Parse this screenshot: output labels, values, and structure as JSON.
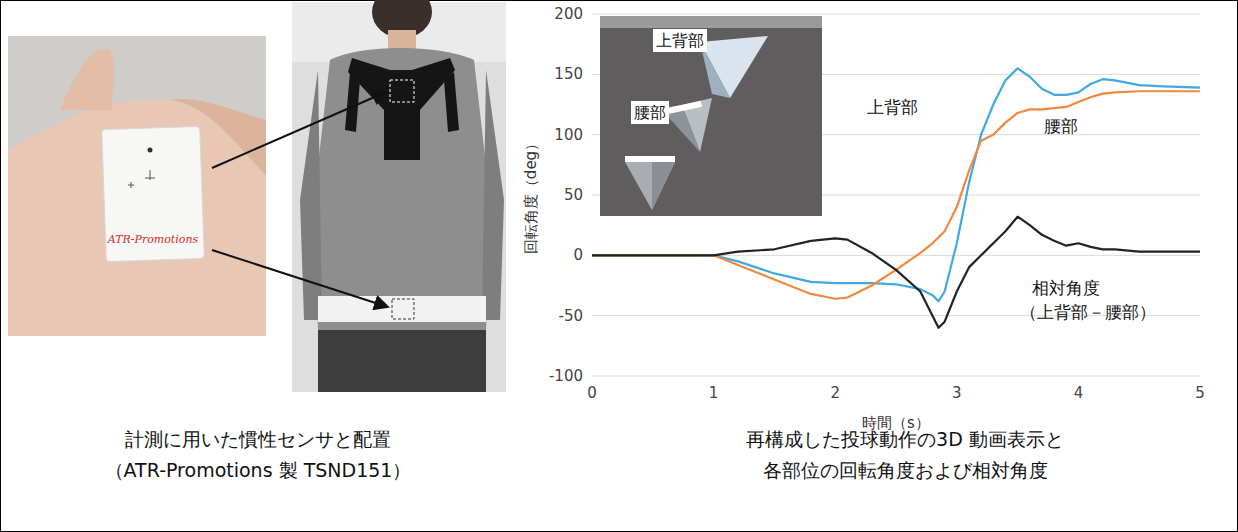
{
  "panels": [
    {
      "caption": [
        "計測に用いた慣性センサと配置",
        "（ATR-Promotions 製 TSND151）"
      ],
      "photo_text": "ATR-Promotions"
    },
    {
      "caption": [
        "再構成した投球動作の3D 動画表示と",
        "各部位の回転角度および相対角度"
      ]
    }
  ],
  "chart_data": {
    "type": "line",
    "x_label": "時間（s）",
    "y_label": "回転角度（deg）",
    "inset_labels": [
      "上背部",
      "腰部"
    ],
    "x": [
      0,
      0.5,
      1,
      1.2,
      1.5,
      1.8,
      2,
      2.1,
      2.3,
      2.5,
      2.7,
      2.8,
      2.85,
      2.9,
      3,
      3.1,
      3.2,
      3.3,
      3.4,
      3.5,
      3.6,
      3.7,
      3.8,
      3.9,
      4,
      4.1,
      4.2,
      4.3,
      4.5,
      4.7,
      5
    ],
    "series": [
      {
        "name": "上背部",
        "color": "#41a8e0",
        "values": [
          0,
          0,
          0,
          -5,
          -15,
          -22,
          -23,
          -23,
          -23,
          -24,
          -28,
          -33,
          -38,
          -30,
          10,
          60,
          100,
          125,
          145,
          155,
          148,
          138,
          133,
          133,
          135,
          142,
          146,
          145,
          141,
          140,
          139
        ]
      },
      {
        "name": "腰部",
        "color": "#f0883e",
        "values": [
          0,
          0,
          0,
          -8,
          -20,
          -32,
          -36,
          -35,
          -25,
          -12,
          2,
          10,
          15,
          20,
          40,
          70,
          95,
          100,
          110,
          118,
          121,
          121,
          122,
          123,
          127,
          131,
          134,
          135,
          136,
          136,
          136
        ]
      },
      {
        "name": "相対角度（上背部－腰部）",
        "color": "#222222",
        "values": [
          0,
          0,
          0,
          3,
          5,
          12,
          14,
          13,
          2,
          -12,
          -30,
          -50,
          -60,
          -55,
          -30,
          -10,
          0,
          10,
          20,
          32,
          25,
          17,
          12,
          8,
          10,
          7,
          5,
          5,
          3,
          3,
          3
        ]
      }
    ],
    "xlim": [
      0,
      5
    ],
    "xticks": [
      0,
      1,
      2,
      3,
      4,
      5
    ],
    "ylim": [
      -100,
      200
    ],
    "yticks": [
      -100,
      -50,
      0,
      50,
      100,
      150,
      200
    ],
    "grid": true
  }
}
